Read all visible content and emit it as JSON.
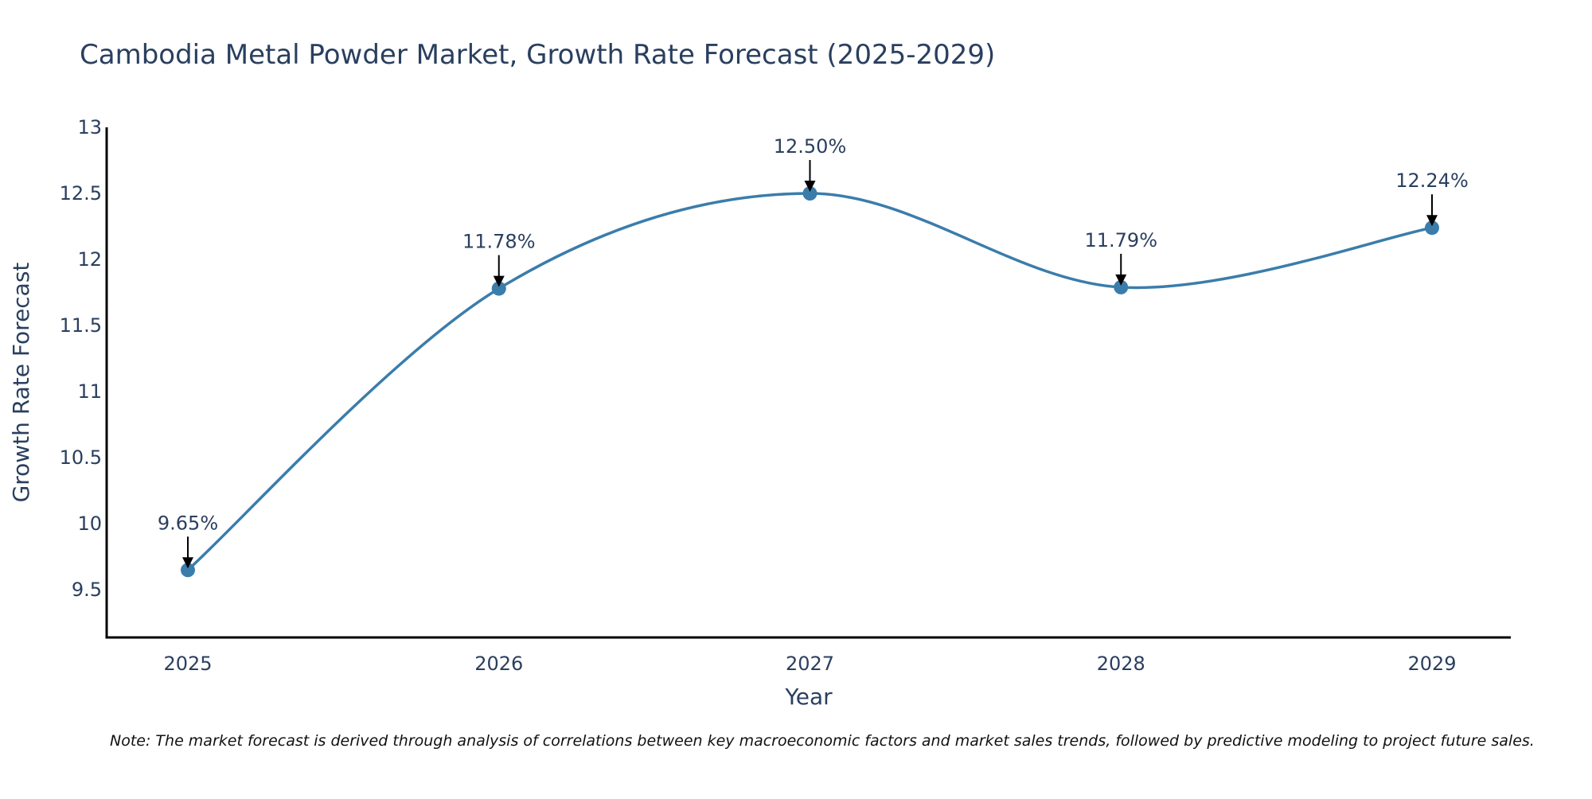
{
  "chart_data": {
    "type": "line",
    "title": "Cambodia Metal Powder Market, Growth Rate Forecast (2025-2029)",
    "xlabel": "Year",
    "ylabel": "Growth Rate Forecast",
    "categories": [
      "2025",
      "2026",
      "2027",
      "2028",
      "2029"
    ],
    "series": [
      {
        "name": "Growth Rate Forecast",
        "values": [
          9.65,
          11.78,
          12.5,
          11.79,
          12.24
        ],
        "labels": [
          "9.65%",
          "11.78%",
          "12.50%",
          "11.79%",
          "12.24%"
        ]
      }
    ],
    "ylim": [
      9.14,
      13
    ],
    "yticks": [
      9.5,
      10,
      10.5,
      11,
      11.5,
      12,
      12.5,
      13
    ],
    "ytick_labels": [
      "9.5",
      "10",
      "10.5",
      "11",
      "11.5",
      "12",
      "12.5",
      "13"
    ],
    "grid": false,
    "colors": {
      "line": "#3a7dab",
      "text": "#2a3f5f",
      "axis": "#000000"
    }
  },
  "note": "Note: The market forecast is derived through analysis of correlations between key macroeconomic factors and market sales trends, followed by predictive modeling to project future sales."
}
